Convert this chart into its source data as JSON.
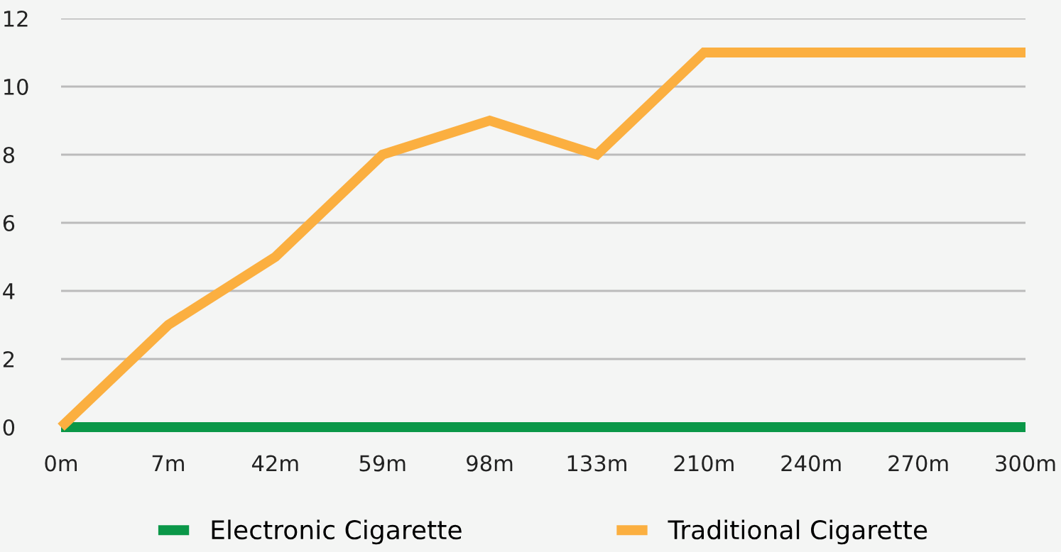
{
  "chart_data": {
    "type": "line",
    "categories": [
      "0m",
      "7m",
      "42m",
      "59m",
      "98m",
      "133m",
      "210m",
      "240m",
      "270m",
      "300m"
    ],
    "series": [
      {
        "name": "Electronic Cigarette",
        "color": "#0a9748",
        "values": [
          0,
          0,
          0,
          0,
          0,
          0,
          0,
          0,
          0,
          0
        ]
      },
      {
        "name": "Traditional Cigarette",
        "color": "#fbaf40",
        "values": [
          0,
          3,
          5,
          8,
          9,
          8,
          11,
          11,
          11,
          11
        ]
      }
    ],
    "ylim": [
      0,
      12
    ],
    "yticks": [
      0,
      2,
      4,
      6,
      8,
      10,
      12
    ],
    "grid": "y",
    "legend": "bottom",
    "marker": "none",
    "line_style": "solid"
  }
}
